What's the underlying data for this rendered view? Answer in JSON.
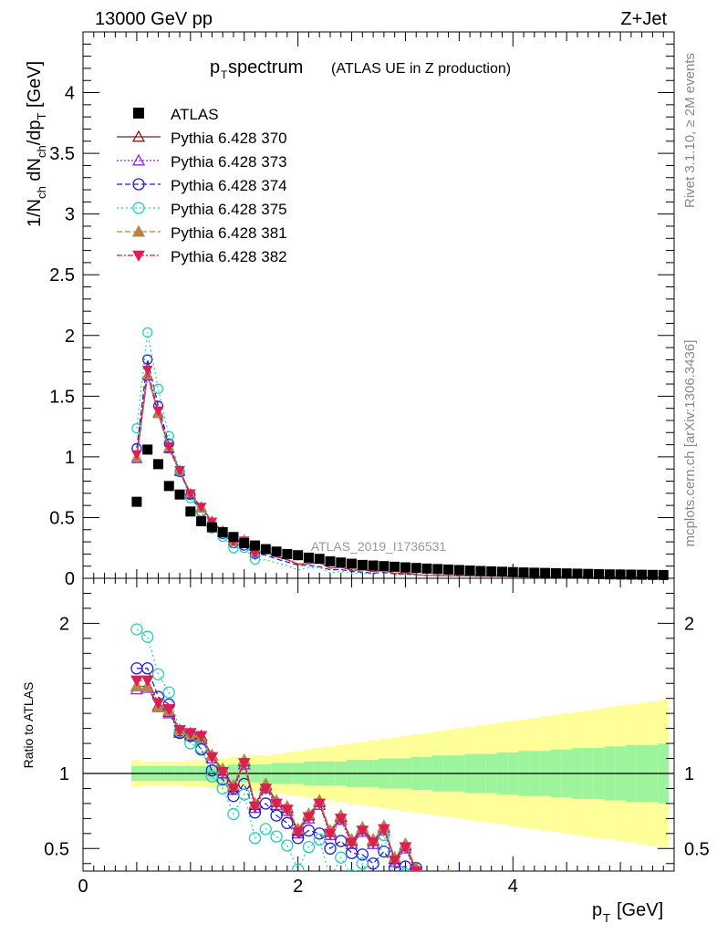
{
  "header": {
    "left": "13000 GeV pp",
    "right": "Z+Jet"
  },
  "side_texts": {
    "rivet": "Rivet 3.1.10, ≥ 2M events",
    "mcplots": "mcplots.cern.ch [arXiv:1306.3436]"
  },
  "chart_data": {
    "type": "scatter",
    "title": "p_T spectrum (ATLAS UE in Z production)",
    "title_main": "p",
    "title_sub": "T",
    "title_rest": " spectrum",
    "title_paren": "(ATLAS UE in Z production)",
    "analysis_label": "ATLAS_2019_I1736531",
    "xlabel": "p_T [GeV]",
    "ylabel": "1/N_ch dN_ch/dp_T [GeV]",
    "ratio_ylabel": "Ratio to ATLAS",
    "xlim": [
      0,
      5.5
    ],
    "ylim": [
      0,
      4.5
    ],
    "ratio_ylim": [
      0.35,
      2.3
    ],
    "x_ticks": [
      "0",
      "2",
      "4"
    ],
    "y_ticks": [
      "0",
      "0.5",
      "1",
      "1.5",
      "2",
      "2.5",
      "3",
      "3.5",
      "4"
    ],
    "ratio_ticks": [
      "0.5",
      "1",
      "2"
    ],
    "x": [
      0.5,
      0.6,
      0.7,
      0.8,
      0.9,
      1.0,
      1.1,
      1.2,
      1.3,
      1.4,
      1.5,
      1.6,
      1.7,
      1.8,
      1.9,
      2.0,
      2.1,
      2.2,
      2.3,
      2.4,
      2.5,
      2.6,
      2.7,
      2.8,
      2.9,
      3.0,
      3.1,
      3.2,
      3.3,
      3.4,
      3.5,
      3.6,
      3.7,
      3.8,
      3.9,
      4.0,
      4.1,
      4.2,
      4.3,
      4.4,
      4.5,
      4.6,
      4.7,
      4.8,
      4.9,
      5.0,
      5.1,
      5.2,
      5.3,
      5.4
    ],
    "data": {
      "name": "ATLAS",
      "values": [
        0.63,
        1.06,
        0.94,
        0.76,
        0.69,
        0.55,
        0.47,
        0.42,
        0.38,
        0.34,
        0.29,
        0.27,
        0.24,
        0.22,
        0.2,
        0.19,
        0.17,
        0.16,
        0.14,
        0.13,
        0.12,
        0.11,
        0.105,
        0.1,
        0.095,
        0.09,
        0.085,
        0.08,
        0.076,
        0.072,
        0.068,
        0.064,
        0.06,
        0.057,
        0.054,
        0.051,
        0.048,
        0.046,
        0.044,
        0.042,
        0.04,
        0.038,
        0.036,
        0.034,
        0.032,
        0.031,
        0.03,
        0.029,
        0.028,
        0.027
      ]
    },
    "series": [
      {
        "name": "Pythia 6.428 370",
        "color": "#8b1a1a",
        "dash": "",
        "marker": "triangle-open",
        "ratio": [
          1.58,
          1.58,
          1.45,
          1.41,
          1.28,
          1.26,
          1.25,
          1.12,
          1.02,
          0.91,
          1.08,
          0.79,
          0.92,
          0.81,
          0.77,
          0.62,
          0.72,
          0.81,
          0.61,
          0.71,
          0.55,
          0.63,
          0.55,
          0.64,
          0.43,
          0.52,
          0.36
        ]
      },
      {
        "name": "Pythia 6.428 373",
        "color": "#8a2be2",
        "dash": "2 2",
        "marker": "triangle-open",
        "ratio": [
          1.56,
          1.57,
          1.44,
          1.4,
          1.27,
          1.25,
          1.23,
          1.1,
          1.0,
          0.89,
          1.06,
          0.77,
          0.9,
          0.79,
          0.75,
          0.6,
          0.7,
          0.79,
          0.59,
          0.69,
          0.53,
          0.61,
          0.53,
          0.62,
          0.41,
          0.5,
          0.34
        ]
      },
      {
        "name": "Pythia 6.428 374",
        "color": "#1c1cd0",
        "dash": "6 3",
        "marker": "circle-open",
        "ratio": [
          1.7,
          1.7,
          1.51,
          1.46,
          1.27,
          1.25,
          1.16,
          1.02,
          0.96,
          0.85,
          0.93,
          0.74,
          0.8,
          0.72,
          0.67,
          0.57,
          0.62,
          0.6,
          0.5,
          0.55,
          0.47,
          0.46,
          0.4,
          0.48,
          0.37,
          0.38,
          0.37
        ]
      },
      {
        "name": "Pythia 6.428 375",
        "color": "#20d0b8",
        "dash": "2 3",
        "marker": "circle-open",
        "ratio": [
          1.96,
          1.91,
          1.66,
          1.54,
          1.28,
          1.2,
          1.17,
          0.98,
          0.9,
          0.73,
          0.86,
          0.57,
          0.63,
          0.58,
          0.52,
          0.36,
          0.51,
          0.56,
          0.3,
          0.44,
          0.32,
          0.4,
          0.28,
          0.59,
          0.29,
          0.33
        ]
      },
      {
        "name": "Pythia 6.428 381",
        "color": "#b5854b",
        "dash": "6 3",
        "marker": "triangle-filled",
        "ratio": [
          1.58,
          1.58,
          1.44,
          1.42,
          1.29,
          1.27,
          1.24,
          1.12,
          1.03,
          0.92,
          1.09,
          0.8,
          0.93,
          0.82,
          0.78,
          0.63,
          0.73,
          0.82,
          0.62,
          0.72,
          0.56,
          0.64,
          0.56,
          0.65,
          0.44,
          0.53,
          0.37,
          0.31,
          0.29,
          0.33
        ]
      },
      {
        "name": "Pythia 6.428 382",
        "color": "#dc1e50",
        "dash": "6 2 2 2",
        "marker": "triangle-down-filled",
        "ratio": [
          1.62,
          1.62,
          1.47,
          1.43,
          1.29,
          1.27,
          1.25,
          1.11,
          1.01,
          0.9,
          1.07,
          0.78,
          0.9,
          0.8,
          0.76,
          0.61,
          0.71,
          0.8,
          0.6,
          0.7,
          0.54,
          0.62,
          0.54,
          0.63,
          0.42,
          0.51,
          0.35
        ]
      }
    ],
    "band_stat": [
      0.05,
      0.05,
      0.05,
      0.05,
      0.05,
      0.05,
      0.05,
      0.05,
      0.05,
      0.06,
      0.06,
      0.06,
      0.06,
      0.07,
      0.07,
      0.07,
      0.08,
      0.08,
      0.08,
      0.08,
      0.09,
      0.09,
      0.09,
      0.1,
      0.1,
      0.1,
      0.11,
      0.11,
      0.12,
      0.12,
      0.12,
      0.13,
      0.13,
      0.13,
      0.14,
      0.14,
      0.15,
      0.15,
      0.15,
      0.16,
      0.16,
      0.17,
      0.17,
      0.17,
      0.18,
      0.18,
      0.19,
      0.19,
      0.19,
      0.2
    ],
    "band_total": [
      0.09,
      0.08,
      0.08,
      0.08,
      0.08,
      0.09,
      0.09,
      0.1,
      0.1,
      0.11,
      0.11,
      0.12,
      0.12,
      0.13,
      0.14,
      0.15,
      0.16,
      0.17,
      0.18,
      0.19,
      0.2,
      0.21,
      0.22,
      0.23,
      0.24,
      0.25,
      0.26,
      0.27,
      0.28,
      0.29,
      0.3,
      0.31,
      0.32,
      0.33,
      0.34,
      0.35,
      0.36,
      0.37,
      0.38,
      0.39,
      0.4,
      0.41,
      0.42,
      0.43,
      0.44,
      0.45,
      0.46,
      0.47,
      0.48,
      0.49
    ],
    "band_colors": {
      "stat": "#9cf59c",
      "total": "#ffff99"
    }
  }
}
